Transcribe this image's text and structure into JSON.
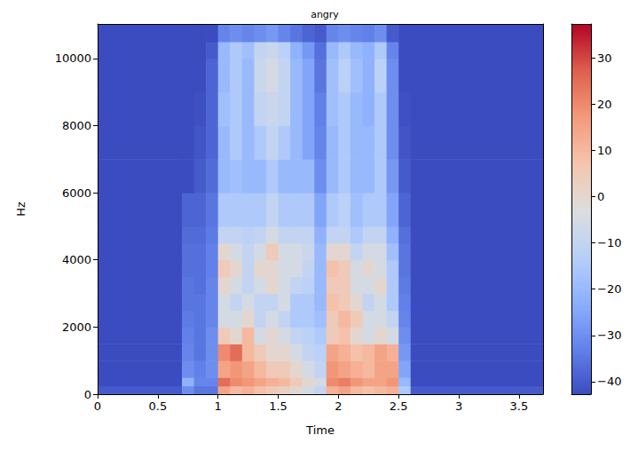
{
  "chart_data": {
    "type": "heatmap",
    "title": "angry",
    "x_label": "Time",
    "y_label": "Hz",
    "xlim": [
      0,
      3.7
    ],
    "xticks": [
      0,
      0.5,
      1,
      1.5,
      2,
      2.5,
      3,
      3.5
    ],
    "ylim": [
      0,
      11025
    ],
    "yticks": [
      0,
      2000,
      4000,
      6000,
      8000,
      10000
    ],
    "x_edges": [
      0,
      0.7,
      0.8,
      0.9,
      1.0,
      1.1,
      1.2,
      1.3,
      1.4,
      1.5,
      1.6,
      1.7,
      1.8,
      1.9,
      2.0,
      2.1,
      2.2,
      2.3,
      2.4,
      2.5,
      2.6,
      3.7
    ],
    "y_edges": [
      0,
      250,
      500,
      1000,
      1500,
      2000,
      2500,
      3000,
      3500,
      4000,
      4500,
      5000,
      6000,
      7000,
      8000,
      9000,
      10000,
      10500,
      11025
    ],
    "cells": [
      [
        -40,
        -30,
        -35,
        -35,
        15,
        10,
        12,
        8,
        5,
        3,
        0,
        -5,
        -10,
        12,
        15,
        10,
        8,
        10,
        12,
        -15,
        -40
      ],
      [
        -42.7,
        -22,
        -32,
        -32,
        25,
        20,
        18,
        15,
        12,
        10,
        5,
        0,
        -5,
        20,
        22,
        18,
        15,
        15,
        18,
        -20,
        -42.7
      ],
      [
        -42.7,
        -30,
        -33,
        -30,
        15,
        18,
        15,
        10,
        5,
        5,
        0,
        -5,
        -10,
        18,
        15,
        12,
        10,
        15,
        15,
        -25,
        -42.7
      ],
      [
        -42.7,
        -32,
        -35,
        -30,
        20,
        25,
        10,
        5,
        0,
        0,
        -5,
        -10,
        -12,
        15,
        12,
        8,
        10,
        15,
        12,
        -28,
        -42.7
      ],
      [
        -42.7,
        -33,
        -35,
        -30,
        5,
        0,
        10,
        -5,
        0,
        -5,
        -10,
        -12,
        -15,
        5,
        8,
        0,
        -5,
        0,
        -5,
        -30,
        -42.7
      ],
      [
        -42.7,
        -34,
        -35,
        -32,
        -5,
        -5,
        0,
        -10,
        -5,
        -10,
        -15,
        -15,
        -18,
        5,
        10,
        5,
        -5,
        -5,
        -10,
        -32,
        -42.7
      ],
      [
        -42.7,
        -35,
        -35,
        -32,
        -5,
        -10,
        -5,
        -10,
        -10,
        -5,
        -15,
        -15,
        -20,
        8,
        5,
        0,
        -10,
        -5,
        -15,
        -33,
        -42.7
      ],
      [
        -42.7,
        -35,
        -36,
        -32,
        0,
        -5,
        -10,
        -5,
        0,
        -5,
        -10,
        -12,
        -20,
        5,
        5,
        -5,
        -5,
        0,
        -15,
        -34,
        -42.7
      ],
      [
        -42.7,
        -36,
        -36,
        -33,
        5,
        0,
        -10,
        0,
        0,
        -5,
        -5,
        -10,
        -20,
        8,
        5,
        -5,
        0,
        -5,
        -15,
        -35,
        -42.7
      ],
      [
        -42.7,
        -36,
        -36,
        -33,
        0,
        -5,
        -10,
        -5,
        5,
        -5,
        -5,
        -8,
        -20,
        0,
        0,
        -10,
        -5,
        -5,
        -18,
        -35,
        -42.7
      ],
      [
        -42.7,
        -37,
        -37,
        -34,
        -10,
        -10,
        -12,
        -10,
        -5,
        -10,
        -10,
        -10,
        -22,
        -10,
        -10,
        -15,
        -10,
        -10,
        -22,
        -36,
        -42.7
      ],
      [
        -42.7,
        -38,
        -38,
        -35,
        -15,
        -15,
        -15,
        -15,
        -10,
        -15,
        -15,
        -15,
        -25,
        -15,
        -12,
        -18,
        -15,
        -15,
        -25,
        -38,
        -42.7
      ],
      [
        -42.7,
        -42.7,
        -40,
        -37,
        -20,
        -18,
        -20,
        -20,
        -15,
        -20,
        -20,
        -20,
        -30,
        -20,
        -15,
        -20,
        -20,
        -15,
        -28,
        -40,
        -42.7
      ],
      [
        -42.7,
        -42.7,
        -41,
        -38,
        -20,
        -15,
        -20,
        -15,
        -10,
        -15,
        -20,
        -25,
        -32,
        -20,
        -15,
        -20,
        -20,
        -15,
        -30,
        -41,
        -42.7
      ],
      [
        -42.7,
        -42.7,
        -42,
        -38,
        -18,
        -15,
        -20,
        -10,
        -8,
        -10,
        -20,
        -25,
        -33,
        -18,
        -15,
        -20,
        -22,
        -15,
        -30,
        -42,
        -42.7
      ],
      [
        -42.7,
        -42.7,
        -42.7,
        -38,
        -20,
        -15,
        -20,
        -8,
        -5,
        -10,
        -20,
        -25,
        -35,
        -18,
        -12,
        -18,
        -22,
        -12,
        -30,
        -42.7,
        -42.7
      ],
      [
        -42.7,
        -42.7,
        -42.7,
        -40,
        -20,
        -15,
        -18,
        -10,
        -8,
        -12,
        -22,
        -28,
        -36,
        -20,
        -15,
        -20,
        -22,
        -15,
        -32,
        -42.7,
        -42.7
      ],
      [
        -42.7,
        -42.7,
        -42.7,
        -42.7,
        -32,
        -30,
        -32,
        -30,
        -28,
        -32,
        -35,
        -38,
        -40,
        -32,
        -30,
        -32,
        -33,
        -30,
        -40,
        -42.7,
        -42.7
      ]
    ],
    "colorbar": {
      "range": [
        -42.7,
        37.3
      ],
      "ticks": [
        {
          "value": -40,
          "label": "−40"
        },
        {
          "value": -30,
          "label": "−30"
        },
        {
          "value": -20,
          "label": "−20"
        },
        {
          "value": -10,
          "label": "−10"
        },
        0,
        10,
        20,
        30
      ]
    }
  }
}
